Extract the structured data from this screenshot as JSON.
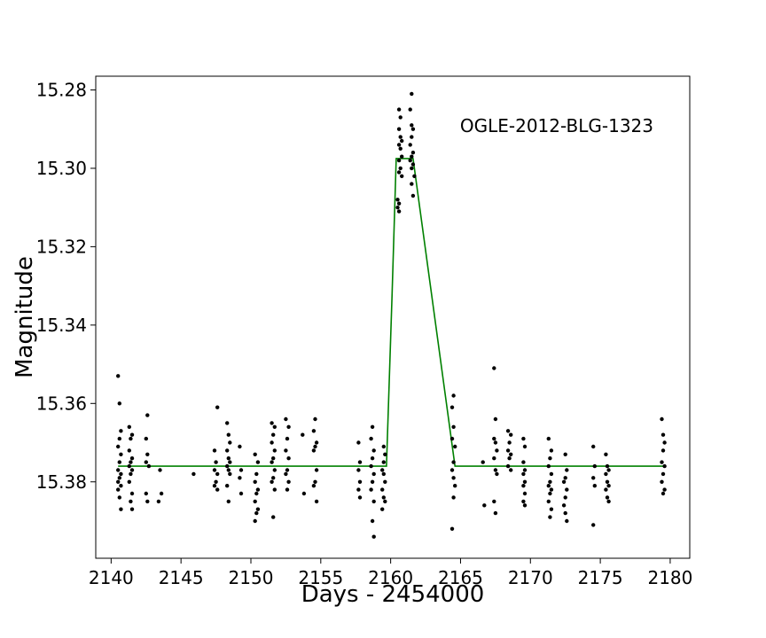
{
  "chart_data": {
    "type": "scatter",
    "title": "",
    "annotation": "OGLE-2012-BLG-1323",
    "xlabel": "Days - 2454000",
    "ylabel": "Magnitude",
    "xlim": [
      2138.9,
      2181.4
    ],
    "ylim": [
      15.3995,
      15.2765
    ],
    "y_inverted": true,
    "grid": false,
    "legend": "none",
    "xticks": [
      2140,
      2145,
      2150,
      2155,
      2160,
      2165,
      2170,
      2175,
      2180
    ],
    "xtick_labels": [
      "2140",
      "2145",
      "2150",
      "2155",
      "2160",
      "2165",
      "2170",
      "2175",
      "2180"
    ],
    "yticks": [
      15.28,
      15.3,
      15.32,
      15.34,
      15.36,
      15.38
    ],
    "ytick_labels": [
      "15.28",
      "15.30",
      "15.32",
      "15.34",
      "15.36",
      "15.38"
    ],
    "point_color": "#000000",
    "model_color": "#008000",
    "series": [
      {
        "kind": "points",
        "points": [
          [
            2140.5,
            15.353
          ],
          [
            2140.6,
            15.36
          ],
          [
            2140.7,
            15.367
          ],
          [
            2140.6,
            15.369
          ],
          [
            2140.5,
            15.371
          ],
          [
            2140.7,
            15.373
          ],
          [
            2140.6,
            15.375
          ],
          [
            2140.5,
            15.377
          ],
          [
            2140.7,
            15.378
          ],
          [
            2140.6,
            15.379
          ],
          [
            2140.5,
            15.38
          ],
          [
            2140.7,
            15.381
          ],
          [
            2140.5,
            15.382
          ],
          [
            2140.6,
            15.384
          ],
          [
            2140.7,
            15.387
          ],
          [
            2141.3,
            15.366
          ],
          [
            2141.5,
            15.368
          ],
          [
            2141.4,
            15.369
          ],
          [
            2141.3,
            15.372
          ],
          [
            2141.5,
            15.374
          ],
          [
            2141.4,
            15.375
          ],
          [
            2141.3,
            15.376
          ],
          [
            2141.5,
            15.377
          ],
          [
            2141.4,
            15.378
          ],
          [
            2141.3,
            15.38
          ],
          [
            2141.5,
            15.383
          ],
          [
            2141.4,
            15.385
          ],
          [
            2141.5,
            15.387
          ],
          [
            2142.6,
            15.363
          ],
          [
            2142.5,
            15.369
          ],
          [
            2142.6,
            15.373
          ],
          [
            2142.5,
            15.375
          ],
          [
            2142.7,
            15.376
          ],
          [
            2142.5,
            15.383
          ],
          [
            2142.6,
            15.385
          ],
          [
            2143.5,
            15.377
          ],
          [
            2143.6,
            15.383
          ],
          [
            2143.4,
            15.385
          ],
          [
            2145.9,
            15.378
          ],
          [
            2147.6,
            15.361
          ],
          [
            2147.4,
            15.372
          ],
          [
            2147.5,
            15.375
          ],
          [
            2147.4,
            15.377
          ],
          [
            2147.6,
            15.378
          ],
          [
            2147.5,
            15.38
          ],
          [
            2147.4,
            15.381
          ],
          [
            2147.6,
            15.382
          ],
          [
            2148.3,
            15.365
          ],
          [
            2148.4,
            15.368
          ],
          [
            2148.5,
            15.37
          ],
          [
            2148.3,
            15.372
          ],
          [
            2148.4,
            15.374
          ],
          [
            2148.5,
            15.375
          ],
          [
            2148.3,
            15.376
          ],
          [
            2148.4,
            15.377
          ],
          [
            2148.5,
            15.378
          ],
          [
            2148.3,
            15.381
          ],
          [
            2148.4,
            15.385
          ],
          [
            2149.2,
            15.371
          ],
          [
            2149.3,
            15.377
          ],
          [
            2149.2,
            15.379
          ],
          [
            2149.3,
            15.383
          ],
          [
            2150.3,
            15.373
          ],
          [
            2150.5,
            15.375
          ],
          [
            2150.4,
            15.378
          ],
          [
            2150.3,
            15.38
          ],
          [
            2150.5,
            15.382
          ],
          [
            2150.4,
            15.383
          ],
          [
            2150.3,
            15.385
          ],
          [
            2150.5,
            15.387
          ],
          [
            2150.4,
            15.388
          ],
          [
            2150.3,
            15.39
          ],
          [
            2151.5,
            15.365
          ],
          [
            2151.7,
            15.366
          ],
          [
            2151.6,
            15.368
          ],
          [
            2151.5,
            15.37
          ],
          [
            2151.7,
            15.372
          ],
          [
            2151.6,
            15.374
          ],
          [
            2151.5,
            15.375
          ],
          [
            2151.7,
            15.377
          ],
          [
            2151.6,
            15.379
          ],
          [
            2151.5,
            15.38
          ],
          [
            2151.7,
            15.382
          ],
          [
            2151.6,
            15.389
          ],
          [
            2152.5,
            15.364
          ],
          [
            2152.7,
            15.366
          ],
          [
            2152.6,
            15.369
          ],
          [
            2152.5,
            15.372
          ],
          [
            2152.7,
            15.374
          ],
          [
            2152.6,
            15.377
          ],
          [
            2152.5,
            15.378
          ],
          [
            2152.7,
            15.38
          ],
          [
            2152.6,
            15.382
          ],
          [
            2153.7,
            15.368
          ],
          [
            2153.8,
            15.383
          ],
          [
            2154.6,
            15.364
          ],
          [
            2154.5,
            15.367
          ],
          [
            2154.7,
            15.37
          ],
          [
            2154.6,
            15.371
          ],
          [
            2154.5,
            15.372
          ],
          [
            2154.7,
            15.377
          ],
          [
            2154.6,
            15.38
          ],
          [
            2154.5,
            15.381
          ],
          [
            2154.7,
            15.385
          ],
          [
            2157.7,
            15.37
          ],
          [
            2157.8,
            15.375
          ],
          [
            2157.7,
            15.377
          ],
          [
            2157.8,
            15.38
          ],
          [
            2157.7,
            15.382
          ],
          [
            2157.8,
            15.384
          ],
          [
            2158.7,
            15.366
          ],
          [
            2158.6,
            15.369
          ],
          [
            2158.8,
            15.372
          ],
          [
            2158.7,
            15.374
          ],
          [
            2158.6,
            15.376
          ],
          [
            2158.8,
            15.378
          ],
          [
            2158.7,
            15.38
          ],
          [
            2158.6,
            15.382
          ],
          [
            2158.8,
            15.385
          ],
          [
            2158.7,
            15.39
          ],
          [
            2158.8,
            15.394
          ],
          [
            2159.5,
            15.371
          ],
          [
            2159.6,
            15.373
          ],
          [
            2159.5,
            15.375
          ],
          [
            2159.4,
            15.377
          ],
          [
            2159.5,
            15.378
          ],
          [
            2159.6,
            15.38
          ],
          [
            2159.4,
            15.382
          ],
          [
            2159.5,
            15.384
          ],
          [
            2159.6,
            15.385
          ],
          [
            2159.4,
            15.387
          ],
          [
            2160.6,
            15.285
          ],
          [
            2160.7,
            15.287
          ],
          [
            2160.6,
            15.29
          ],
          [
            2160.7,
            15.292
          ],
          [
            2160.8,
            15.293
          ],
          [
            2160.6,
            15.294
          ],
          [
            2160.7,
            15.295
          ],
          [
            2160.8,
            15.297
          ],
          [
            2160.6,
            15.298
          ],
          [
            2160.7,
            15.3
          ],
          [
            2160.6,
            15.301
          ],
          [
            2160.8,
            15.302
          ],
          [
            2160.5,
            15.308
          ],
          [
            2160.6,
            15.309
          ],
          [
            2160.5,
            15.31
          ],
          [
            2160.6,
            15.311
          ],
          [
            2161.5,
            15.281
          ],
          [
            2161.4,
            15.285
          ],
          [
            2161.5,
            15.289
          ],
          [
            2161.6,
            15.29
          ],
          [
            2161.5,
            15.292
          ],
          [
            2161.4,
            15.294
          ],
          [
            2161.6,
            15.296
          ],
          [
            2161.5,
            15.297
          ],
          [
            2161.4,
            15.298
          ],
          [
            2161.6,
            15.299
          ],
          [
            2161.5,
            15.3
          ],
          [
            2161.7,
            15.302
          ],
          [
            2161.5,
            15.304
          ],
          [
            2161.6,
            15.307
          ],
          [
            2164.5,
            15.358
          ],
          [
            2164.4,
            15.361
          ],
          [
            2164.5,
            15.366
          ],
          [
            2164.4,
            15.369
          ],
          [
            2164.6,
            15.371
          ],
          [
            2164.5,
            15.375
          ],
          [
            2164.4,
            15.377
          ],
          [
            2164.5,
            15.379
          ],
          [
            2164.6,
            15.381
          ],
          [
            2164.5,
            15.384
          ],
          [
            2164.4,
            15.392
          ],
          [
            2166.6,
            15.375
          ],
          [
            2166.7,
            15.386
          ],
          [
            2167.4,
            15.351
          ],
          [
            2167.5,
            15.364
          ],
          [
            2167.4,
            15.369
          ],
          [
            2167.5,
            15.37
          ],
          [
            2167.6,
            15.372
          ],
          [
            2167.4,
            15.374
          ],
          [
            2167.5,
            15.377
          ],
          [
            2167.6,
            15.378
          ],
          [
            2167.4,
            15.385
          ],
          [
            2167.5,
            15.388
          ],
          [
            2168.4,
            15.367
          ],
          [
            2168.6,
            15.368
          ],
          [
            2168.5,
            15.37
          ],
          [
            2168.4,
            15.372
          ],
          [
            2168.6,
            15.373
          ],
          [
            2168.5,
            15.374
          ],
          [
            2168.4,
            15.376
          ],
          [
            2168.6,
            15.377
          ],
          [
            2169.5,
            15.369
          ],
          [
            2169.6,
            15.371
          ],
          [
            2169.5,
            15.375
          ],
          [
            2169.6,
            15.377
          ],
          [
            2169.5,
            15.378
          ],
          [
            2169.6,
            15.38
          ],
          [
            2169.5,
            15.381
          ],
          [
            2169.6,
            15.383
          ],
          [
            2169.5,
            15.385
          ],
          [
            2169.6,
            15.386
          ],
          [
            2171.3,
            15.369
          ],
          [
            2171.5,
            15.372
          ],
          [
            2171.4,
            15.374
          ],
          [
            2171.3,
            15.376
          ],
          [
            2171.5,
            15.378
          ],
          [
            2171.4,
            15.38
          ],
          [
            2171.3,
            15.381
          ],
          [
            2171.5,
            15.382
          ],
          [
            2171.4,
            15.383
          ],
          [
            2171.3,
            15.385
          ],
          [
            2171.5,
            15.387
          ],
          [
            2171.4,
            15.389
          ],
          [
            2172.5,
            15.373
          ],
          [
            2172.6,
            15.377
          ],
          [
            2172.5,
            15.379
          ],
          [
            2172.4,
            15.38
          ],
          [
            2172.6,
            15.382
          ],
          [
            2172.5,
            15.384
          ],
          [
            2172.4,
            15.386
          ],
          [
            2172.5,
            15.388
          ],
          [
            2172.6,
            15.39
          ],
          [
            2174.5,
            15.371
          ],
          [
            2174.6,
            15.376
          ],
          [
            2174.5,
            15.379
          ],
          [
            2174.6,
            15.381
          ],
          [
            2174.5,
            15.391
          ],
          [
            2175.4,
            15.373
          ],
          [
            2175.5,
            15.376
          ],
          [
            2175.6,
            15.377
          ],
          [
            2175.4,
            15.378
          ],
          [
            2175.5,
            15.38
          ],
          [
            2175.6,
            15.381
          ],
          [
            2175.4,
            15.382
          ],
          [
            2175.5,
            15.384
          ],
          [
            2175.6,
            15.385
          ],
          [
            2179.4,
            15.364
          ],
          [
            2179.5,
            15.368
          ],
          [
            2179.6,
            15.37
          ],
          [
            2179.5,
            15.372
          ],
          [
            2179.4,
            15.375
          ],
          [
            2179.6,
            15.376
          ],
          [
            2179.5,
            15.378
          ],
          [
            2179.4,
            15.38
          ],
          [
            2179.6,
            15.382
          ],
          [
            2179.5,
            15.383
          ]
        ]
      },
      {
        "kind": "model-line",
        "points": [
          [
            2140.5,
            15.376
          ],
          [
            2159.7,
            15.376
          ],
          [
            2160.1,
            15.3325
          ],
          [
            2160.4,
            15.2975
          ],
          [
            2161.6,
            15.2975
          ],
          [
            2164.6,
            15.376
          ],
          [
            2179.5,
            15.376
          ]
        ]
      }
    ]
  }
}
